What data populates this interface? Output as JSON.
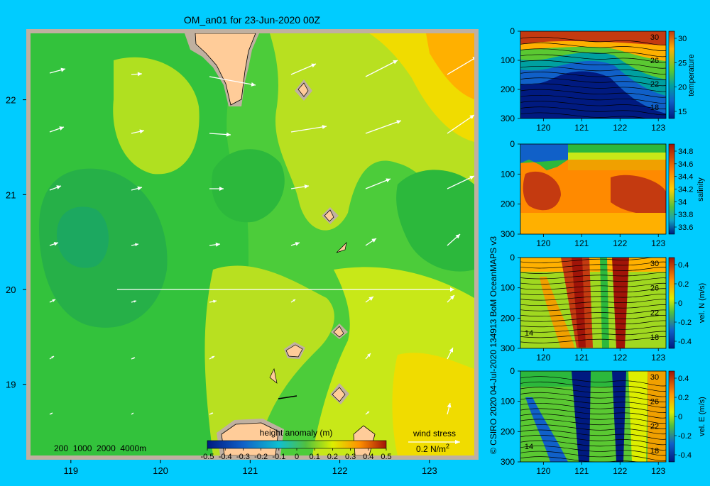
{
  "title": "OM_an01 for 23-Jun-2020 00Z",
  "credit": "© CSIRO 2020   04-Jul-2020 134913 BoM OceanMAPS v3",
  "colors": {
    "background": "#00ccff",
    "land": "#ffcc99",
    "frame": "#c0b0a0",
    "contour_low": "#22aa44",
    "contour_high": "#ff9900"
  },
  "chart_data": [
    {
      "type": "heatmap",
      "name": "map",
      "xticks": [
        "119",
        "120",
        "121",
        "122",
        "123"
      ],
      "yticks": [
        "22",
        "21",
        "20",
        "19"
      ],
      "xlim": [
        118.55,
        123.5
      ],
      "ylim": [
        18.25,
        22.7
      ],
      "colorbar": {
        "label": "height anomaly (m)",
        "ticks": [
          "-0.5",
          "-0.4",
          "-0.3",
          "-0.2",
          "-0.1",
          "0",
          "0.1",
          "0.2",
          "0.3",
          "0.4",
          "0.5"
        ],
        "range": [
          -0.5,
          0.5
        ]
      },
      "bathymetry_legend": "200  1000  2000  4000m",
      "wind_stress": {
        "label": "wind stress",
        "scale": "0.2 N/m",
        "exponent": "2"
      }
    },
    {
      "type": "heatmap",
      "name": "temperature section",
      "colorbar_label": "temperature",
      "colorbar_ticks": [
        "30",
        "25",
        "20",
        "15"
      ],
      "contour_labels": [
        "30",
        "26",
        "22",
        "18"
      ],
      "xticks": [
        "120",
        "121",
        "122",
        "123"
      ],
      "yticks": [
        "0",
        "100",
        "200",
        "300"
      ],
      "ylim": [
        0,
        300
      ]
    },
    {
      "type": "heatmap",
      "name": "salinity section",
      "colorbar_label": "salinity",
      "colorbar_ticks": [
        "34.8",
        "34.6",
        "34.4",
        "34.2",
        "34",
        "33.8",
        "33.6"
      ],
      "xticks": [
        "120",
        "121",
        "122",
        "123"
      ],
      "yticks": [
        "0",
        "100",
        "200",
        "300"
      ],
      "ylim": [
        0,
        300
      ]
    },
    {
      "type": "heatmap",
      "name": "northward velocity section",
      "colorbar_label": "vel. N (m/s)",
      "colorbar_ticks": [
        "0.4",
        "0.2",
        "0",
        "-0.2",
        "-0.4"
      ],
      "contour_labels": [
        "30",
        "26",
        "22",
        "18",
        "14"
      ],
      "xticks": [
        "120",
        "121",
        "122",
        "123"
      ],
      "yticks": [
        "0",
        "100",
        "200",
        "300"
      ],
      "ylim": [
        0,
        300
      ]
    },
    {
      "type": "heatmap",
      "name": "eastward velocity section",
      "colorbar_label": "vel. E (m/s)",
      "colorbar_ticks": [
        "0.4",
        "0.2",
        "0",
        "-0.2",
        "-0.4"
      ],
      "contour_labels": [
        "30",
        "26",
        "22",
        "18",
        "14"
      ],
      "xticks": [
        "120",
        "121",
        "122",
        "123"
      ],
      "yticks": [
        "0",
        "100",
        "200",
        "300"
      ],
      "ylim": [
        0,
        300
      ]
    }
  ]
}
